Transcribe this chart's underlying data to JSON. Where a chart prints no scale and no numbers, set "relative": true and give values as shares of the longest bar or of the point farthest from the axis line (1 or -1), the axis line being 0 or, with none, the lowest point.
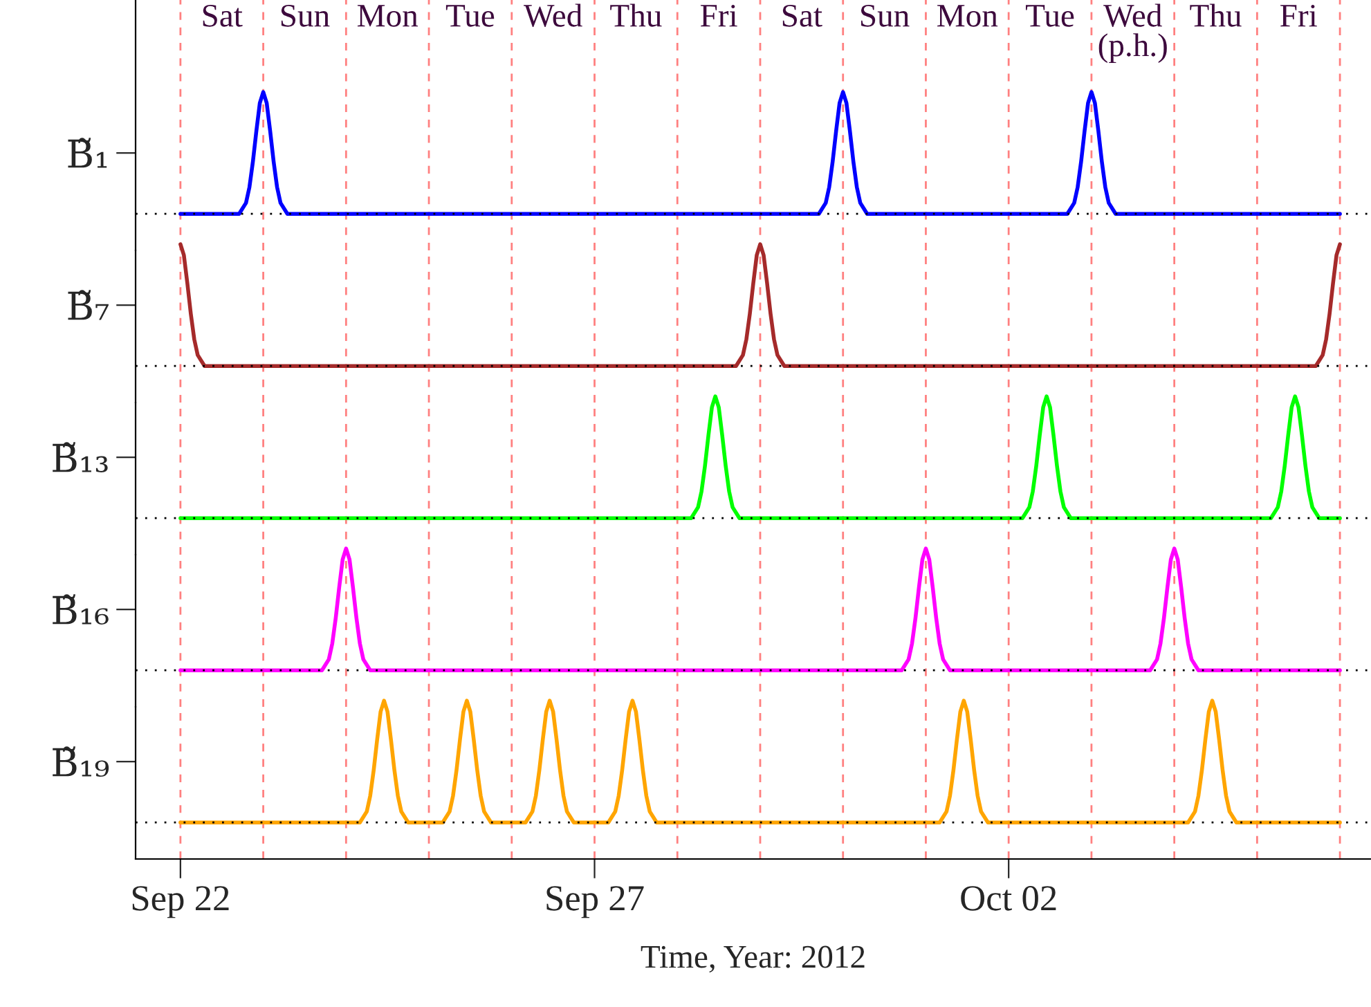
{
  "chart_data": [
    {
      "type": "line",
      "relative": true,
      "ylabel": "B̃₁",
      "tick_labels": false,
      "xlim": [
        "2012-09-21T11:00",
        "2012-10-06T09:00"
      ],
      "annotations": [
        "Sat",
        "Sun",
        "Mon",
        "Tue",
        "Wed",
        "Thu",
        "Fri",
        "Sat",
        "Sun",
        "Mon",
        "Tue",
        "Wed\n(p.h.)",
        "Thu",
        "Fri"
      ],
      "ref_lines": [
        {
          "axis": "y",
          "value": 0,
          "color": "#000000",
          "line_style": "dotted"
        },
        {
          "axis": "x",
          "value": "2012-09-22",
          "color": "#ff8080",
          "line_style": "dashed"
        },
        {
          "axis": "x",
          "value": "2012-09-23",
          "color": "#ff8080",
          "line_style": "dashed"
        },
        {
          "axis": "x",
          "value": "2012-09-24",
          "color": "#ff8080",
          "line_style": "dashed"
        },
        {
          "axis": "x",
          "value": "2012-09-25",
          "color": "#ff8080",
          "line_style": "dashed"
        },
        {
          "axis": "x",
          "value": "2012-09-26",
          "color": "#ff8080",
          "line_style": "dashed"
        },
        {
          "axis": "x",
          "value": "2012-09-27",
          "color": "#ff8080",
          "line_style": "dashed"
        },
        {
          "axis": "x",
          "value": "2012-09-28",
          "color": "#ff8080",
          "line_style": "dashed"
        },
        {
          "axis": "x",
          "value": "2012-09-29",
          "color": "#ff8080",
          "line_style": "dashed"
        },
        {
          "axis": "x",
          "value": "2012-09-30",
          "color": "#ff8080",
          "line_style": "dashed"
        },
        {
          "axis": "x",
          "value": "2012-10-01",
          "color": "#ff8080",
          "line_style": "dashed"
        },
        {
          "axis": "x",
          "value": "2012-10-02",
          "color": "#ff8080",
          "line_style": "dashed"
        },
        {
          "axis": "x",
          "value": "2012-10-03",
          "color": "#ff8080",
          "line_style": "dashed"
        },
        {
          "axis": "x",
          "value": "2012-10-04",
          "color": "#ff8080",
          "line_style": "dashed"
        },
        {
          "axis": "x",
          "value": "2012-10-05",
          "color": "#ff8080",
          "line_style": "dashed"
        },
        {
          "axis": "x",
          "value": "2012-10-06",
          "color": "#ff8080",
          "line_style": "dashed"
        }
      ],
      "series": [
        {
          "color": "#0000ff",
          "x": [
            "2012-09-22T00:00",
            "2012-09-22T17:00",
            "2012-09-22T19:00",
            "2012-09-22T20:00",
            "2012-09-22T21:00",
            "2012-09-22T22:00",
            "2012-09-22T23:00",
            "2012-09-23T00:00",
            "2012-09-23T01:00",
            "2012-09-23T02:00",
            "2012-09-23T03:00",
            "2012-09-23T04:00",
            "2012-09-23T05:00",
            "2012-09-23T07:00",
            "2012-09-29T17:00",
            "2012-09-29T19:00",
            "2012-09-29T20:00",
            "2012-09-29T21:00",
            "2012-09-29T22:00",
            "2012-09-29T23:00",
            "2012-09-30T00:00",
            "2012-09-30T01:00",
            "2012-09-30T02:00",
            "2012-09-30T03:00",
            "2012-09-30T04:00",
            "2012-09-30T05:00",
            "2012-09-30T07:00",
            "2012-10-02T17:00",
            "2012-10-02T19:00",
            "2012-10-02T20:00",
            "2012-10-02T21:00",
            "2012-10-02T22:00",
            "2012-10-02T23:00",
            "2012-10-03T00:00",
            "2012-10-03T01:00",
            "2012-10-03T02:00",
            "2012-10-03T03:00",
            "2012-10-03T04:00",
            "2012-10-03T05:00",
            "2012-10-03T07:00",
            "2012-10-06T00:00"
          ],
          "values": [
            0,
            0,
            0.09,
            0.22,
            0.43,
            0.68,
            0.91,
            1,
            0.91,
            0.68,
            0.43,
            0.22,
            0.09,
            0,
            0,
            0.09,
            0.22,
            0.43,
            0.68,
            0.91,
            1,
            0.91,
            0.68,
            0.43,
            0.22,
            0.09,
            0,
            0,
            0.09,
            0.22,
            0.43,
            0.68,
            0.91,
            1,
            0.91,
            0.68,
            0.43,
            0.22,
            0.09,
            0,
            0
          ]
        }
      ]
    },
    {
      "type": "line",
      "relative": true,
      "ylabel": "B̃₇",
      "tick_labels": false,
      "xlim": [
        "2012-09-21T11:00",
        "2012-10-06T09:00"
      ],
      "ref_lines": [
        {
          "axis": "y",
          "value": 0,
          "color": "#000000",
          "line_style": "dotted"
        },
        {
          "axis": "x",
          "value": "2012-09-22",
          "color": "#ff8080",
          "line_style": "dashed"
        },
        {
          "axis": "x",
          "value": "2012-09-23",
          "color": "#ff8080",
          "line_style": "dashed"
        },
        {
          "axis": "x",
          "value": "2012-09-24",
          "color": "#ff8080",
          "line_style": "dashed"
        },
        {
          "axis": "x",
          "value": "2012-09-25",
          "color": "#ff8080",
          "line_style": "dashed"
        },
        {
          "axis": "x",
          "value": "2012-09-26",
          "color": "#ff8080",
          "line_style": "dashed"
        },
        {
          "axis": "x",
          "value": "2012-09-27",
          "color": "#ff8080",
          "line_style": "dashed"
        },
        {
          "axis": "x",
          "value": "2012-09-28",
          "color": "#ff8080",
          "line_style": "dashed"
        },
        {
          "axis": "x",
          "value": "2012-09-29",
          "color": "#ff8080",
          "line_style": "dashed"
        },
        {
          "axis": "x",
          "value": "2012-09-30",
          "color": "#ff8080",
          "line_style": "dashed"
        },
        {
          "axis": "x",
          "value": "2012-10-01",
          "color": "#ff8080",
          "line_style": "dashed"
        },
        {
          "axis": "x",
          "value": "2012-10-02",
          "color": "#ff8080",
          "line_style": "dashed"
        },
        {
          "axis": "x",
          "value": "2012-10-03",
          "color": "#ff8080",
          "line_style": "dashed"
        },
        {
          "axis": "x",
          "value": "2012-10-04",
          "color": "#ff8080",
          "line_style": "dashed"
        },
        {
          "axis": "x",
          "value": "2012-10-05",
          "color": "#ff8080",
          "line_style": "dashed"
        },
        {
          "axis": "x",
          "value": "2012-10-06",
          "color": "#ff8080",
          "line_style": "dashed"
        }
      ],
      "series": [
        {
          "color": "#a52a2a",
          "x": [
            "2012-09-22T00:00",
            "2012-09-22T01:00",
            "2012-09-22T02:00",
            "2012-09-22T03:00",
            "2012-09-22T04:00",
            "2012-09-22T05:00",
            "2012-09-22T07:00",
            "2012-09-28T17:00",
            "2012-09-28T19:00",
            "2012-09-28T20:00",
            "2012-09-28T21:00",
            "2012-09-28T22:00",
            "2012-09-28T23:00",
            "2012-09-29T00:00",
            "2012-09-29T01:00",
            "2012-09-29T02:00",
            "2012-09-29T03:00",
            "2012-09-29T04:00",
            "2012-09-29T05:00",
            "2012-09-29T07:00",
            "2012-10-05T17:00",
            "2012-10-05T19:00",
            "2012-10-05T20:00",
            "2012-10-05T21:00",
            "2012-10-05T22:00",
            "2012-10-05T23:00",
            "2012-10-06T00:00"
          ],
          "values": [
            1,
            0.91,
            0.68,
            0.43,
            0.22,
            0.09,
            0,
            0,
            0.09,
            0.22,
            0.43,
            0.68,
            0.91,
            1,
            0.91,
            0.68,
            0.43,
            0.22,
            0.09,
            0,
            0,
            0.09,
            0.22,
            0.43,
            0.68,
            0.91,
            1
          ]
        }
      ]
    },
    {
      "type": "line",
      "relative": true,
      "ylabel": "B̃₁₃",
      "tick_labels": false,
      "xlim": [
        "2012-09-21T11:00",
        "2012-10-06T09:00"
      ],
      "ref_lines": [
        {
          "axis": "y",
          "value": 0,
          "color": "#000000",
          "line_style": "dotted"
        },
        {
          "axis": "x",
          "value": "2012-09-22",
          "color": "#ff8080",
          "line_style": "dashed"
        },
        {
          "axis": "x",
          "value": "2012-09-23",
          "color": "#ff8080",
          "line_style": "dashed"
        },
        {
          "axis": "x",
          "value": "2012-09-24",
          "color": "#ff8080",
          "line_style": "dashed"
        },
        {
          "axis": "x",
          "value": "2012-09-25",
          "color": "#ff8080",
          "line_style": "dashed"
        },
        {
          "axis": "x",
          "value": "2012-09-26",
          "color": "#ff8080",
          "line_style": "dashed"
        },
        {
          "axis": "x",
          "value": "2012-09-27",
          "color": "#ff8080",
          "line_style": "dashed"
        },
        {
          "axis": "x",
          "value": "2012-09-28",
          "color": "#ff8080",
          "line_style": "dashed"
        },
        {
          "axis": "x",
          "value": "2012-09-29",
          "color": "#ff8080",
          "line_style": "dashed"
        },
        {
          "axis": "x",
          "value": "2012-09-30",
          "color": "#ff8080",
          "line_style": "dashed"
        },
        {
          "axis": "x",
          "value": "2012-10-01",
          "color": "#ff8080",
          "line_style": "dashed"
        },
        {
          "axis": "x",
          "value": "2012-10-02",
          "color": "#ff8080",
          "line_style": "dashed"
        },
        {
          "axis": "x",
          "value": "2012-10-03",
          "color": "#ff8080",
          "line_style": "dashed"
        },
        {
          "axis": "x",
          "value": "2012-10-04",
          "color": "#ff8080",
          "line_style": "dashed"
        },
        {
          "axis": "x",
          "value": "2012-10-05",
          "color": "#ff8080",
          "line_style": "dashed"
        },
        {
          "axis": "x",
          "value": "2012-10-06",
          "color": "#ff8080",
          "line_style": "dashed"
        }
      ],
      "series": [
        {
          "color": "#00ff00",
          "x": [
            "2012-09-22T00:00",
            "2012-09-28T04:00",
            "2012-09-28T06:00",
            "2012-09-28T07:00",
            "2012-09-28T08:00",
            "2012-09-28T09:00",
            "2012-09-28T10:00",
            "2012-09-28T11:00",
            "2012-09-28T12:00",
            "2012-09-28T13:00",
            "2012-09-28T14:00",
            "2012-09-28T15:00",
            "2012-09-28T16:00",
            "2012-09-28T18:00",
            "2012-10-02T04:00",
            "2012-10-02T06:00",
            "2012-10-02T07:00",
            "2012-10-02T08:00",
            "2012-10-02T09:00",
            "2012-10-02T10:00",
            "2012-10-02T11:00",
            "2012-10-02T12:00",
            "2012-10-02T13:00",
            "2012-10-02T14:00",
            "2012-10-02T15:00",
            "2012-10-02T16:00",
            "2012-10-02T18:00",
            "2012-10-05T04:00",
            "2012-10-05T06:00",
            "2012-10-05T07:00",
            "2012-10-05T08:00",
            "2012-10-05T09:00",
            "2012-10-05T10:00",
            "2012-10-05T11:00",
            "2012-10-05T12:00",
            "2012-10-05T13:00",
            "2012-10-05T14:00",
            "2012-10-05T15:00",
            "2012-10-05T16:00",
            "2012-10-05T18:00",
            "2012-10-06T00:00"
          ],
          "values": [
            0,
            0,
            0.09,
            0.22,
            0.43,
            0.68,
            0.91,
            1,
            0.91,
            0.68,
            0.43,
            0.22,
            0.09,
            0,
            0,
            0.09,
            0.22,
            0.43,
            0.68,
            0.91,
            1,
            0.91,
            0.68,
            0.43,
            0.22,
            0.09,
            0,
            0,
            0.09,
            0.22,
            0.43,
            0.68,
            0.91,
            1,
            0.91,
            0.68,
            0.43,
            0.22,
            0.09,
            0,
            0
          ]
        }
      ]
    },
    {
      "type": "line",
      "relative": true,
      "ylabel": "B̃₁₆",
      "tick_labels": false,
      "xlim": [
        "2012-09-21T11:00",
        "2012-10-06T09:00"
      ],
      "ref_lines": [
        {
          "axis": "y",
          "value": 0,
          "color": "#000000",
          "line_style": "dotted"
        },
        {
          "axis": "x",
          "value": "2012-09-22",
          "color": "#ff8080",
          "line_style": "dashed"
        },
        {
          "axis": "x",
          "value": "2012-09-23",
          "color": "#ff8080",
          "line_style": "dashed"
        },
        {
          "axis": "x",
          "value": "2012-09-24",
          "color": "#ff8080",
          "line_style": "dashed"
        },
        {
          "axis": "x",
          "value": "2012-09-25",
          "color": "#ff8080",
          "line_style": "dashed"
        },
        {
          "axis": "x",
          "value": "2012-09-26",
          "color": "#ff8080",
          "line_style": "dashed"
        },
        {
          "axis": "x",
          "value": "2012-09-27",
          "color": "#ff8080",
          "line_style": "dashed"
        },
        {
          "axis": "x",
          "value": "2012-09-28",
          "color": "#ff8080",
          "line_style": "dashed"
        },
        {
          "axis": "x",
          "value": "2012-09-29",
          "color": "#ff8080",
          "line_style": "dashed"
        },
        {
          "axis": "x",
          "value": "2012-09-30",
          "color": "#ff8080",
          "line_style": "dashed"
        },
        {
          "axis": "x",
          "value": "2012-10-01",
          "color": "#ff8080",
          "line_style": "dashed"
        },
        {
          "axis": "x",
          "value": "2012-10-02",
          "color": "#ff8080",
          "line_style": "dashed"
        },
        {
          "axis": "x",
          "value": "2012-10-03",
          "color": "#ff8080",
          "line_style": "dashed"
        },
        {
          "axis": "x",
          "value": "2012-10-04",
          "color": "#ff8080",
          "line_style": "dashed"
        },
        {
          "axis": "x",
          "value": "2012-10-05",
          "color": "#ff8080",
          "line_style": "dashed"
        },
        {
          "axis": "x",
          "value": "2012-10-06",
          "color": "#ff8080",
          "line_style": "dashed"
        }
      ],
      "series": [
        {
          "color": "#ff00ff",
          "x": [
            "2012-09-22T00:00",
            "2012-09-23T17:00",
            "2012-09-23T19:00",
            "2012-09-23T20:00",
            "2012-09-23T21:00",
            "2012-09-23T22:00",
            "2012-09-23T23:00",
            "2012-09-24T00:00",
            "2012-09-24T01:00",
            "2012-09-24T02:00",
            "2012-09-24T03:00",
            "2012-09-24T04:00",
            "2012-09-24T05:00",
            "2012-09-24T07:00",
            "2012-09-30T17:00",
            "2012-09-30T19:00",
            "2012-09-30T20:00",
            "2012-09-30T21:00",
            "2012-09-30T22:00",
            "2012-09-30T23:00",
            "2012-10-01T00:00",
            "2012-10-01T01:00",
            "2012-10-01T02:00",
            "2012-10-01T03:00",
            "2012-10-01T04:00",
            "2012-10-01T05:00",
            "2012-10-01T07:00",
            "2012-10-03T17:00",
            "2012-10-03T19:00",
            "2012-10-03T20:00",
            "2012-10-03T21:00",
            "2012-10-03T22:00",
            "2012-10-03T23:00",
            "2012-10-04T00:00",
            "2012-10-04T01:00",
            "2012-10-04T02:00",
            "2012-10-04T03:00",
            "2012-10-04T04:00",
            "2012-10-04T05:00",
            "2012-10-04T07:00",
            "2012-10-06T00:00"
          ],
          "values": [
            0,
            0,
            0.09,
            0.22,
            0.43,
            0.68,
            0.91,
            1,
            0.91,
            0.68,
            0.43,
            0.22,
            0.09,
            0,
            0,
            0.09,
            0.22,
            0.43,
            0.68,
            0.91,
            1,
            0.91,
            0.68,
            0.43,
            0.22,
            0.09,
            0,
            0,
            0.09,
            0.22,
            0.43,
            0.68,
            0.91,
            1,
            0.91,
            0.68,
            0.43,
            0.22,
            0.09,
            0,
            0
          ]
        }
      ]
    },
    {
      "type": "line",
      "relative": true,
      "ylabel": "B̃₁₉",
      "tick_labels": "x",
      "xlabel": "Time, Year: 2012",
      "xlim": [
        "2012-09-21T11:00",
        "2012-10-06T09:00"
      ],
      "xticks": [
        {
          "value": "2012-09-22",
          "label": "Sep 22"
        },
        {
          "value": "2012-09-27",
          "label": "Sep 27"
        },
        {
          "value": "2012-10-02",
          "label": "Oct 02"
        }
      ],
      "ref_lines": [
        {
          "axis": "y",
          "value": 0,
          "color": "#000000",
          "line_style": "dotted"
        },
        {
          "axis": "x",
          "value": "2012-09-22",
          "color": "#ff8080",
          "line_style": "dashed"
        },
        {
          "axis": "x",
          "value": "2012-09-23",
          "color": "#ff8080",
          "line_style": "dashed"
        },
        {
          "axis": "x",
          "value": "2012-09-24",
          "color": "#ff8080",
          "line_style": "dashed"
        },
        {
          "axis": "x",
          "value": "2012-09-25",
          "color": "#ff8080",
          "line_style": "dashed"
        },
        {
          "axis": "x",
          "value": "2012-09-26",
          "color": "#ff8080",
          "line_style": "dashed"
        },
        {
          "axis": "x",
          "value": "2012-09-27",
          "color": "#ff8080",
          "line_style": "dashed"
        },
        {
          "axis": "x",
          "value": "2012-09-28",
          "color": "#ff8080",
          "line_style": "dashed"
        },
        {
          "axis": "x",
          "value": "2012-09-29",
          "color": "#ff8080",
          "line_style": "dashed"
        },
        {
          "axis": "x",
          "value": "2012-09-30",
          "color": "#ff8080",
          "line_style": "dashed"
        },
        {
          "axis": "x",
          "value": "2012-10-01",
          "color": "#ff8080",
          "line_style": "dashed"
        },
        {
          "axis": "x",
          "value": "2012-10-02",
          "color": "#ff8080",
          "line_style": "dashed"
        },
        {
          "axis": "x",
          "value": "2012-10-03",
          "color": "#ff8080",
          "line_style": "dashed"
        },
        {
          "axis": "x",
          "value": "2012-10-04",
          "color": "#ff8080",
          "line_style": "dashed"
        },
        {
          "axis": "x",
          "value": "2012-10-05",
          "color": "#ff8080",
          "line_style": "dashed"
        },
        {
          "axis": "x",
          "value": "2012-10-06",
          "color": "#ff8080",
          "line_style": "dashed"
        }
      ],
      "series": [
        {
          "color": "#ffa500",
          "x": [
            "2012-09-22T00:00",
            "2012-09-24T04:00",
            "2012-09-24T06:00",
            "2012-09-24T07:00",
            "2012-09-24T08:00",
            "2012-09-24T09:00",
            "2012-09-24T10:00",
            "2012-09-24T11:00",
            "2012-09-24T12:00",
            "2012-09-24T13:00",
            "2012-09-24T14:00",
            "2012-09-24T15:00",
            "2012-09-24T16:00",
            "2012-09-24T18:00",
            "2012-09-25T04:00",
            "2012-09-25T06:00",
            "2012-09-25T07:00",
            "2012-09-25T08:00",
            "2012-09-25T09:00",
            "2012-09-25T10:00",
            "2012-09-25T11:00",
            "2012-09-25T12:00",
            "2012-09-25T13:00",
            "2012-09-25T14:00",
            "2012-09-25T15:00",
            "2012-09-25T16:00",
            "2012-09-25T18:00",
            "2012-09-26T04:00",
            "2012-09-26T06:00",
            "2012-09-26T07:00",
            "2012-09-26T08:00",
            "2012-09-26T09:00",
            "2012-09-26T10:00",
            "2012-09-26T11:00",
            "2012-09-26T12:00",
            "2012-09-26T13:00",
            "2012-09-26T14:00",
            "2012-09-26T15:00",
            "2012-09-26T16:00",
            "2012-09-26T18:00",
            "2012-09-27T04:00",
            "2012-09-27T06:00",
            "2012-09-27T07:00",
            "2012-09-27T08:00",
            "2012-09-27T09:00",
            "2012-09-27T10:00",
            "2012-09-27T11:00",
            "2012-09-27T12:00",
            "2012-09-27T13:00",
            "2012-09-27T14:00",
            "2012-09-27T15:00",
            "2012-09-27T16:00",
            "2012-09-27T18:00",
            "2012-10-01T04:00",
            "2012-10-01T06:00",
            "2012-10-01T07:00",
            "2012-10-01T08:00",
            "2012-10-01T09:00",
            "2012-10-01T10:00",
            "2012-10-01T11:00",
            "2012-10-01T12:00",
            "2012-10-01T13:00",
            "2012-10-01T14:00",
            "2012-10-01T15:00",
            "2012-10-01T16:00",
            "2012-10-01T18:00",
            "2012-10-04T04:00",
            "2012-10-04T06:00",
            "2012-10-04T07:00",
            "2012-10-04T08:00",
            "2012-10-04T09:00",
            "2012-10-04T10:00",
            "2012-10-04T11:00",
            "2012-10-04T12:00",
            "2012-10-04T13:00",
            "2012-10-04T14:00",
            "2012-10-04T15:00",
            "2012-10-04T16:00",
            "2012-10-04T18:00",
            "2012-10-06T00:00"
          ],
          "values": [
            0,
            0,
            0.09,
            0.22,
            0.43,
            0.68,
            0.91,
            1,
            0.91,
            0.68,
            0.43,
            0.22,
            0.09,
            0,
            0,
            0.09,
            0.22,
            0.43,
            0.68,
            0.91,
            1,
            0.91,
            0.68,
            0.43,
            0.22,
            0.09,
            0,
            0,
            0.09,
            0.22,
            0.43,
            0.68,
            0.91,
            1,
            0.91,
            0.68,
            0.43,
            0.22,
            0.09,
            0,
            0,
            0.09,
            0.22,
            0.43,
            0.68,
            0.91,
            1,
            0.91,
            0.68,
            0.43,
            0.22,
            0.09,
            0,
            0,
            0.09,
            0.22,
            0.43,
            0.68,
            0.91,
            1,
            0.91,
            0.68,
            0.43,
            0.22,
            0.09,
            0,
            0,
            0.09,
            0.22,
            0.43,
            0.68,
            0.91,
            1,
            0.91,
            0.68,
            0.43,
            0.22,
            0.09,
            0,
            0
          ]
        }
      ]
    }
  ]
}
